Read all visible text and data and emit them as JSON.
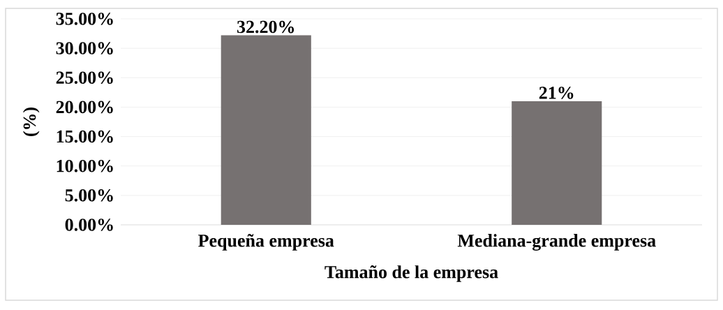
{
  "chart_data": {
    "type": "bar",
    "xlabel": "Tamaño de la empresa",
    "ylabel": "(%)",
    "categories": [
      "Pequeña empresa",
      "Mediana-grande empresa"
    ],
    "values": [
      32.2,
      21
    ],
    "value_labels": [
      "32.20%",
      "21%"
    ],
    "color": "#767171",
    "ylim": [
      0,
      35
    ],
    "yticks": [
      {
        "value": 0,
        "label": "0.00%"
      },
      {
        "value": 5,
        "label": "5.00%"
      },
      {
        "value": 10,
        "label": "10.00%"
      },
      {
        "value": 15,
        "label": "15.00%"
      },
      {
        "value": 20,
        "label": "20.00%"
      },
      {
        "value": 25,
        "label": "25.00%"
      },
      {
        "value": 30,
        "label": "30.00%"
      },
      {
        "value": 35,
        "label": "35.00%"
      }
    ],
    "grid": "y"
  }
}
